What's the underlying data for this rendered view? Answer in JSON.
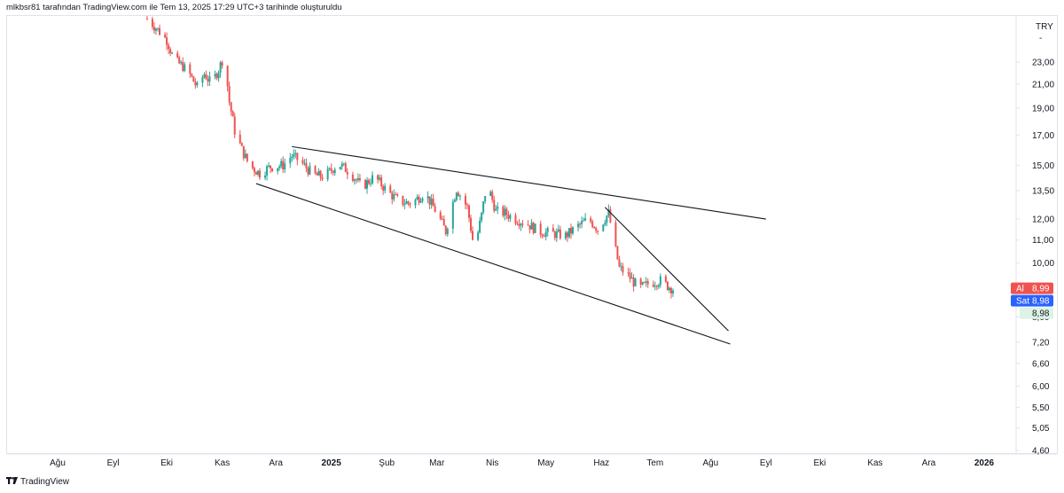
{
  "header": {
    "caption": "mlkbsr81 tarafından TradingView.com ile Tem 13, 2025 17:29 UTC+3 tarihinde oluşturuldu"
  },
  "footer": {
    "brand": "TradingView"
  },
  "colors": {
    "up": "#26a69a",
    "down": "#ef5350",
    "trendline": "#131722",
    "ask": "#ef5350",
    "bid": "#2962ff",
    "last": "#dcf3e6",
    "grid": "#e0e3eb"
  },
  "chart_data": {
    "type": "candlestick",
    "currency": "TRY",
    "y_axis": {
      "scale": "log",
      "ticks": [
        "23,00",
        "21,00",
        "19,00",
        "17,00",
        "15,00",
        "13,50",
        "12,00",
        "11,00",
        "10,00",
        "8,00",
        "7,20",
        "6,60",
        "6,00",
        "5,50",
        "5,05",
        "4,60"
      ],
      "tick_values": [
        23,
        21,
        19,
        17,
        15,
        13.5,
        12,
        11,
        10,
        8,
        7.2,
        6.6,
        6,
        5.5,
        5.05,
        4.6
      ]
    },
    "x_axis": {
      "ticks": [
        {
          "label": "Ağu",
          "date": "2024-08-01",
          "bold": false
        },
        {
          "label": "Eyl",
          "date": "2024-09-01",
          "bold": false
        },
        {
          "label": "Eki",
          "date": "2024-10-01",
          "bold": false
        },
        {
          "label": "Kas",
          "date": "2024-11-01",
          "bold": false
        },
        {
          "label": "Ara",
          "date": "2024-12-01",
          "bold": false
        },
        {
          "label": "2025",
          "date": "2025-01-01",
          "bold": true
        },
        {
          "label": "Şub",
          "date": "2025-02-01",
          "bold": false
        },
        {
          "label": "Mar",
          "date": "2025-03-01",
          "bold": false
        },
        {
          "label": "Nis",
          "date": "2025-04-01",
          "bold": false
        },
        {
          "label": "May",
          "date": "2025-05-01",
          "bold": false
        },
        {
          "label": "Haz",
          "date": "2025-06-01",
          "bold": false
        },
        {
          "label": "Tem",
          "date": "2025-07-01",
          "bold": false
        },
        {
          "label": "Ağu",
          "date": "2025-08-01",
          "bold": false
        },
        {
          "label": "Eyl",
          "date": "2025-09-01",
          "bold": false
        },
        {
          "label": "Eki",
          "date": "2025-10-01",
          "bold": false
        },
        {
          "label": "Kas",
          "date": "2025-11-01",
          "bold": false
        },
        {
          "label": "Ara",
          "date": "2025-12-01",
          "bold": false
        },
        {
          "label": "2026",
          "date": "2026-01-01",
          "bold": true
        }
      ]
    },
    "price_anchors": [
      {
        "date": "2024-09-20",
        "price": 27.5
      },
      {
        "date": "2024-09-25",
        "price": 26.5
      },
      {
        "date": "2024-10-01",
        "price": 25.2
      },
      {
        "date": "2024-10-05",
        "price": 23.2
      },
      {
        "date": "2024-10-10",
        "price": 22.6
      },
      {
        "date": "2024-10-14",
        "price": 21.8
      },
      {
        "date": "2024-10-18",
        "price": 20.7
      },
      {
        "date": "2024-10-22",
        "price": 21.9
      },
      {
        "date": "2024-10-26",
        "price": 21.0
      },
      {
        "date": "2024-10-30",
        "price": 22.3
      },
      {
        "date": "2024-11-02",
        "price": 23.6
      },
      {
        "date": "2024-11-05",
        "price": 19.5
      },
      {
        "date": "2024-11-08",
        "price": 17.3
      },
      {
        "date": "2024-11-12",
        "price": 16.0
      },
      {
        "date": "2024-11-16",
        "price": 15.0
      },
      {
        "date": "2024-11-22",
        "price": 14.5
      },
      {
        "date": "2024-11-28",
        "price": 14.9
      },
      {
        "date": "2024-12-05",
        "price": 15.0
      },
      {
        "date": "2024-12-10",
        "price": 15.6
      },
      {
        "date": "2024-12-15",
        "price": 15.2
      },
      {
        "date": "2024-12-22",
        "price": 14.4
      },
      {
        "date": "2024-12-28",
        "price": 14.3
      },
      {
        "date": "2025-01-05",
        "price": 15.1
      },
      {
        "date": "2025-01-12",
        "price": 14.5
      },
      {
        "date": "2025-01-18",
        "price": 13.7
      },
      {
        "date": "2025-01-25",
        "price": 14.3
      },
      {
        "date": "2025-02-02",
        "price": 13.4
      },
      {
        "date": "2025-02-08",
        "price": 12.9
      },
      {
        "date": "2025-02-15",
        "price": 12.8
      },
      {
        "date": "2025-02-22",
        "price": 13.4
      },
      {
        "date": "2025-03-01",
        "price": 12.3
      },
      {
        "date": "2025-03-06",
        "price": 11.4
      },
      {
        "date": "2025-03-12",
        "price": 13.6
      },
      {
        "date": "2025-03-18",
        "price": 12.6
      },
      {
        "date": "2025-03-22",
        "price": 10.5
      },
      {
        "date": "2025-03-26",
        "price": 12.2
      },
      {
        "date": "2025-03-29",
        "price": 13.9
      },
      {
        "date": "2025-04-03",
        "price": 12.4
      },
      {
        "date": "2025-04-08",
        "price": 12.3
      },
      {
        "date": "2025-04-14",
        "price": 12.0
      },
      {
        "date": "2025-04-20",
        "price": 11.8
      },
      {
        "date": "2025-04-27",
        "price": 11.4
      },
      {
        "date": "2025-05-05",
        "price": 11.3
      },
      {
        "date": "2025-05-12",
        "price": 11.2
      },
      {
        "date": "2025-05-18",
        "price": 11.6
      },
      {
        "date": "2025-05-25",
        "price": 12.0
      },
      {
        "date": "2025-05-30",
        "price": 11.5
      },
      {
        "date": "2025-06-05",
        "price": 12.3
      },
      {
        "date": "2025-06-08",
        "price": 10.9
      },
      {
        "date": "2025-06-11",
        "price": 9.8
      },
      {
        "date": "2025-06-16",
        "price": 9.5
      },
      {
        "date": "2025-06-22",
        "price": 9.0
      },
      {
        "date": "2025-06-28",
        "price": 9.2
      },
      {
        "date": "2025-07-04",
        "price": 9.3
      },
      {
        "date": "2025-07-08",
        "price": 9.1
      },
      {
        "date": "2025-07-11",
        "price": 8.98
      }
    ],
    "trendlines": [
      {
        "name": "upper",
        "from": {
          "date": "2024-12-10",
          "price": 16.2
        },
        "to": {
          "date": "2025-09-01",
          "price": 12.0
        }
      },
      {
        "name": "lower",
        "from": {
          "date": "2024-11-20",
          "price": 13.9
        },
        "to": {
          "date": "2025-08-12",
          "price": 7.15
        }
      },
      {
        "name": "short-resistance",
        "from": {
          "date": "2025-06-03",
          "price": 12.6
        },
        "to": {
          "date": "2025-08-11",
          "price": 7.55
        }
      }
    ],
    "price_labels": [
      {
        "tag": "Al",
        "value": "8,99",
        "kind": "ask"
      },
      {
        "tag": "Sat",
        "value": "8,98",
        "kind": "bid"
      },
      {
        "tag": "",
        "value": "8,98",
        "kind": "last"
      }
    ],
    "y_top_mark": "-"
  }
}
